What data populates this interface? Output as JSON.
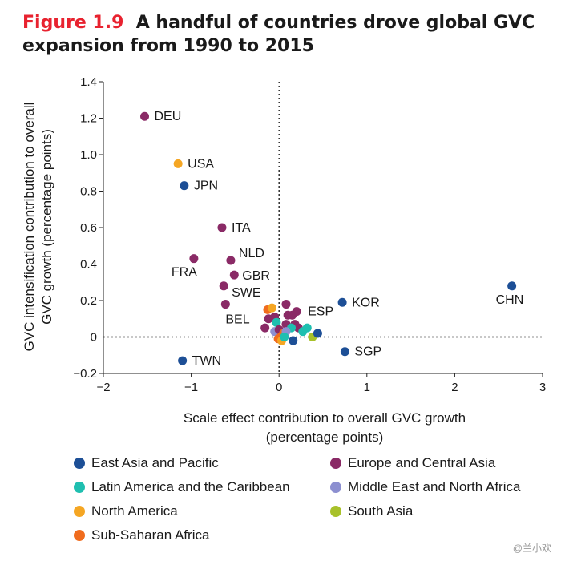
{
  "header": {
    "figure_label": "Figure 1.9",
    "title_line1": "A handful of countries drove global GVC",
    "title_line2": "expansion from 1990 to 2015"
  },
  "watermark": "@兰小欢",
  "colors": {
    "East Asia and Pacific": "#1d4f96",
    "Europe and Central Asia": "#8a2a66",
    "Latin America and the Caribbean": "#1fbfb0",
    "Middle East and North Africa": "#8c8fd0",
    "North America": "#f5a623",
    "South Asia": "#a8c12a",
    "Sub-Saharan Africa": "#f06c1e"
  },
  "legend": [
    {
      "label": "East Asia and Pacific",
      "icon": "circle"
    },
    {
      "label": "Europe and Central Asia",
      "icon": "circle"
    },
    {
      "label": "Latin America and the Caribbean",
      "icon": "circle"
    },
    {
      "label": "Middle East and North Africa",
      "icon": "circle"
    },
    {
      "label": "North America",
      "icon": "circle"
    },
    {
      "label": "South Asia",
      "icon": "circle"
    },
    {
      "label": "Sub-Saharan Africa",
      "icon": "circle"
    }
  ],
  "chart_data": {
    "type": "scatter",
    "title": "A handful of countries drove global GVC expansion from 1990 to 2015",
    "xlabel_lines": [
      "Scale effect contribution to overall GVC growth",
      "(percentage points)"
    ],
    "ylabel_lines": [
      "GVC intensification contribution to overall",
      "GVC growth (percentage points)"
    ],
    "xlim": [
      -2,
      3
    ],
    "ylim": [
      -0.2,
      1.4
    ],
    "xticks": [
      -2,
      -1,
      0,
      1,
      2,
      3
    ],
    "yticks": [
      -0.2,
      0,
      0.2,
      0.4,
      0.6,
      0.8,
      1.0,
      1.2,
      1.4
    ],
    "ytick_labels": [
      "−0.2",
      "0",
      "0.2",
      "0.4",
      "0.6",
      "0.8",
      "1.0",
      "1.2",
      "1.4"
    ],
    "xtick_labels": [
      "−2",
      "−1",
      "0",
      "1",
      "2",
      "3"
    ],
    "reference_lines": {
      "x": 0,
      "y": 0,
      "style": "dotted"
    },
    "grid": false,
    "legend_position": "bottom",
    "points": [
      {
        "x": -1.53,
        "y": 1.21,
        "group": "Europe and Central Asia",
        "label": "DEU"
      },
      {
        "x": -1.15,
        "y": 0.95,
        "group": "North America",
        "label": "USA"
      },
      {
        "x": -1.08,
        "y": 0.83,
        "group": "East Asia and Pacific",
        "label": "JPN"
      },
      {
        "x": -0.65,
        "y": 0.6,
        "group": "Europe and Central Asia",
        "label": "ITA"
      },
      {
        "x": -0.97,
        "y": 0.43,
        "group": "Europe and Central Asia",
        "label": "FRA"
      },
      {
        "x": -0.55,
        "y": 0.42,
        "group": "Europe and Central Asia",
        "label": "NLD"
      },
      {
        "x": -0.51,
        "y": 0.34,
        "group": "Europe and Central Asia",
        "label": "GBR"
      },
      {
        "x": -0.63,
        "y": 0.28,
        "group": "Europe and Central Asia",
        "label": "SWE"
      },
      {
        "x": -0.61,
        "y": 0.18,
        "group": "Europe and Central Asia",
        "label": "BEL"
      },
      {
        "x": -1.1,
        "y": -0.13,
        "group": "East Asia and Pacific",
        "label": "TWN"
      },
      {
        "x": 0.2,
        "y": 0.14,
        "group": "Europe and Central Asia",
        "label": "ESP"
      },
      {
        "x": 0.72,
        "y": 0.19,
        "group": "East Asia and Pacific",
        "label": "KOR"
      },
      {
        "x": 0.75,
        "y": -0.08,
        "group": "East Asia and Pacific",
        "label": "SGP"
      },
      {
        "x": 2.65,
        "y": 0.28,
        "group": "East Asia and Pacific",
        "label": "CHN"
      },
      {
        "x": -0.13,
        "y": 0.15,
        "group": "Sub-Saharan Africa",
        "label": ""
      },
      {
        "x": -0.08,
        "y": 0.16,
        "group": "North America",
        "label": ""
      },
      {
        "x": -0.12,
        "y": 0.1,
        "group": "Europe and Central Asia",
        "label": ""
      },
      {
        "x": -0.16,
        "y": 0.05,
        "group": "Europe and Central Asia",
        "label": ""
      },
      {
        "x": -0.05,
        "y": 0.11,
        "group": "Europe and Central Asia",
        "label": ""
      },
      {
        "x": -0.03,
        "y": 0.08,
        "group": "Latin America and the Caribbean",
        "label": ""
      },
      {
        "x": -0.05,
        "y": 0.03,
        "group": "Middle East and North Africa",
        "label": ""
      },
      {
        "x": 0.0,
        "y": 0.04,
        "group": "Europe and Central Asia",
        "label": ""
      },
      {
        "x": 0.02,
        "y": 0.0,
        "group": "Sub-Saharan Africa",
        "label": ""
      },
      {
        "x": -0.01,
        "y": -0.01,
        "group": "Sub-Saharan Africa",
        "label": ""
      },
      {
        "x": 0.05,
        "y": 0.02,
        "group": "Sub-Saharan Africa",
        "label": ""
      },
      {
        "x": 0.03,
        "y": -0.02,
        "group": "North America",
        "label": ""
      },
      {
        "x": 0.08,
        "y": 0.18,
        "group": "Europe and Central Asia",
        "label": ""
      },
      {
        "x": 0.1,
        "y": 0.12,
        "group": "Europe and Central Asia",
        "label": ""
      },
      {
        "x": 0.15,
        "y": 0.12,
        "group": "Europe and Central Asia",
        "label": ""
      },
      {
        "x": 0.08,
        "y": 0.07,
        "group": "Europe and Central Asia",
        "label": ""
      },
      {
        "x": 0.18,
        "y": 0.07,
        "group": "Europe and Central Asia",
        "label": ""
      },
      {
        "x": 0.22,
        "y": 0.05,
        "group": "Europe and Central Asia",
        "label": ""
      },
      {
        "x": 0.14,
        "y": 0.05,
        "group": "Latin America and the Caribbean",
        "label": ""
      },
      {
        "x": 0.32,
        "y": 0.05,
        "group": "Latin America and the Caribbean",
        "label": ""
      },
      {
        "x": 0.38,
        "y": 0.0,
        "group": "South Asia",
        "label": ""
      },
      {
        "x": 0.27,
        "y": 0.03,
        "group": "Latin America and the Caribbean",
        "label": ""
      },
      {
        "x": 0.44,
        "y": 0.02,
        "group": "East Asia and Pacific",
        "label": ""
      },
      {
        "x": 0.16,
        "y": -0.02,
        "group": "East Asia and Pacific",
        "label": ""
      },
      {
        "x": 0.08,
        "y": 0.03,
        "group": "Middle East and North Africa",
        "label": ""
      },
      {
        "x": 0.06,
        "y": 0.0,
        "group": "Latin America and the Caribbean",
        "label": ""
      }
    ]
  }
}
